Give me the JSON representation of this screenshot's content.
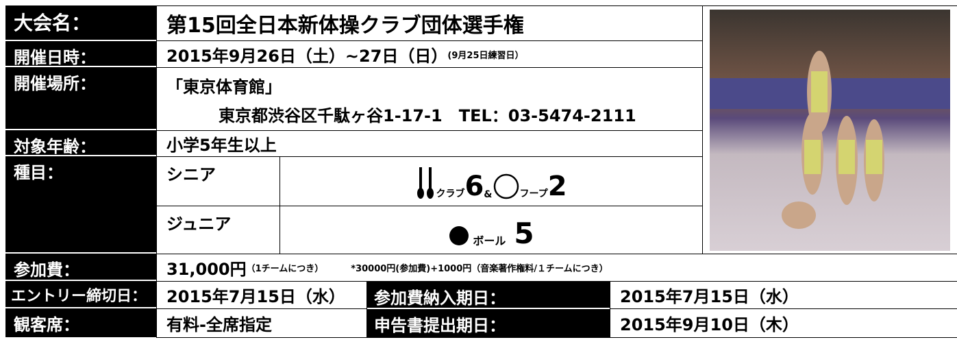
{
  "title": {
    "label": "大会名：",
    "value": "第15回全日本新体操クラブ団体選手権"
  },
  "date": {
    "label": "開催日時：",
    "value": "2015年9月26日（土）~27日（日）",
    "note": "(9月25日練習日）"
  },
  "venue": {
    "label": "開催場所：",
    "name": "「東京体育館」",
    "address": "東京都渋谷区千駄ヶ谷1-17-1　TEL：03-5474-2111"
  },
  "age": {
    "label": "対象年齢：",
    "value": "小学5年生以上"
  },
  "event": {
    "label": "種目：",
    "senior": {
      "label": "シニア",
      "item1": "クラブ",
      "count1": "6",
      "joiner": "&",
      "item2": "フープ",
      "count2": "2"
    },
    "junior": {
      "label": "ジュニア",
      "item": "ボール",
      "count": "5"
    }
  },
  "fee": {
    "label": "参加費：",
    "value": "31,000円",
    "unit_note": "（1チームにつき）",
    "detail": "*30000円(参加費)+1000円（音楽著作権料/１チームにつき）"
  },
  "entry": {
    "label": "エントリー締切日：",
    "value": "2015年7月15日（水）",
    "payment_label": "参加費納入期日：",
    "payment_value": "2015年7月15日（水）"
  },
  "seats": {
    "label": "観客席：",
    "value": "有料-全席指定",
    "report_label": "申告書提出期日：",
    "report_value": "2015年9月10日（木）"
  }
}
